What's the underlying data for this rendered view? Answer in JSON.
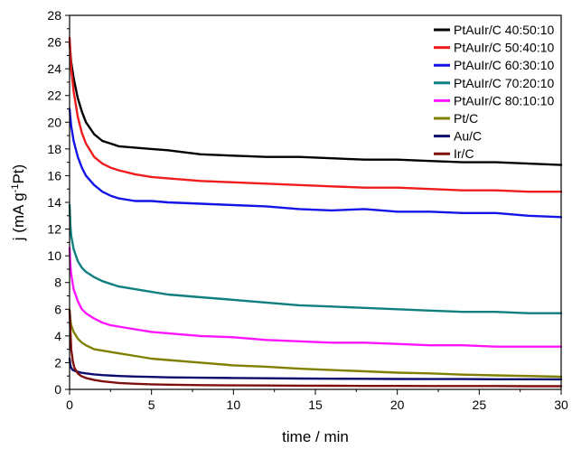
{
  "chart_data": {
    "type": "line",
    "title": "",
    "xlabel": "time / min",
    "ylabel_parts": {
      "pre": "j (mA g",
      "sup": "-1",
      "post": "Pt)"
    },
    "xlim": [
      0,
      30
    ],
    "ylim": [
      0,
      28
    ],
    "x_ticks": [
      0,
      5,
      10,
      15,
      20,
      25,
      30
    ],
    "y_ticks": [
      0,
      2,
      4,
      6,
      8,
      10,
      12,
      14,
      16,
      18,
      20,
      22,
      24,
      26,
      28
    ],
    "grid": false,
    "legend_position": "top-right",
    "series": [
      {
        "name": "PtAuIr/C 40:50:10",
        "color": "#000000",
        "x": [
          0,
          0.1,
          0.25,
          0.5,
          0.75,
          1,
          1.5,
          2,
          2.5,
          3,
          4,
          5,
          6,
          8,
          10,
          12,
          14,
          16,
          18,
          20,
          22,
          24,
          26,
          28,
          30
        ],
        "y": [
          26.0,
          24.5,
          23.3,
          21.8,
          20.8,
          20.0,
          19.1,
          18.6,
          18.4,
          18.2,
          18.1,
          18.0,
          17.9,
          17.6,
          17.5,
          17.4,
          17.4,
          17.3,
          17.2,
          17.2,
          17.1,
          17.0,
          17.0,
          16.9,
          16.8
        ]
      },
      {
        "name": "PtAuIr/C 50:40:10",
        "color": "#ee1c1c",
        "x": [
          0,
          0.1,
          0.25,
          0.5,
          0.75,
          1,
          1.5,
          2,
          2.5,
          3,
          4,
          5,
          6,
          8,
          10,
          12,
          14,
          16,
          18,
          20,
          22,
          24,
          26,
          28,
          30
        ],
        "y": [
          26.3,
          24.0,
          22.3,
          20.4,
          19.2,
          18.4,
          17.4,
          16.9,
          16.6,
          16.4,
          16.1,
          15.9,
          15.8,
          15.6,
          15.5,
          15.4,
          15.3,
          15.2,
          15.1,
          15.1,
          15.0,
          14.9,
          14.9,
          14.8,
          14.8
        ]
      },
      {
        "name": "PtAuIr/C 60:30:10",
        "color": "#1414e6",
        "x": [
          0,
          0.1,
          0.25,
          0.5,
          0.75,
          1,
          1.5,
          2,
          2.5,
          3,
          4,
          5,
          6,
          8,
          10,
          12,
          14,
          16,
          18,
          20,
          22,
          24,
          26,
          28,
          30
        ],
        "y": [
          21.0,
          19.7,
          18.6,
          17.4,
          16.6,
          16.0,
          15.3,
          14.8,
          14.5,
          14.3,
          14.1,
          14.1,
          14.0,
          13.9,
          13.8,
          13.7,
          13.5,
          13.4,
          13.5,
          13.3,
          13.3,
          13.2,
          13.2,
          13.0,
          12.9
        ]
      },
      {
        "name": "PtAuIr/C 70:20:10",
        "color": "#0f7f7f",
        "x": [
          0,
          0.05,
          0.1,
          0.25,
          0.5,
          0.75,
          1,
          1.5,
          2,
          2.5,
          3,
          4,
          5,
          6,
          8,
          10,
          12,
          14,
          16,
          18,
          20,
          22,
          24,
          26,
          28,
          30
        ],
        "y": [
          13.8,
          12.3,
          11.5,
          10.5,
          9.6,
          9.1,
          8.8,
          8.4,
          8.1,
          7.9,
          7.7,
          7.5,
          7.3,
          7.1,
          6.9,
          6.7,
          6.5,
          6.3,
          6.2,
          6.1,
          6.0,
          5.9,
          5.8,
          5.8,
          5.7,
          5.7
        ]
      },
      {
        "name": "PtAuIr/C 80:10:10",
        "color": "#ff14ff",
        "x": [
          0,
          0.05,
          0.1,
          0.25,
          0.5,
          0.75,
          1,
          1.5,
          2,
          2.5,
          3,
          4,
          5,
          6,
          8,
          10,
          12,
          14,
          16,
          18,
          20,
          22,
          24,
          26,
          28,
          30
        ],
        "y": [
          10.6,
          9.3,
          8.6,
          7.5,
          6.6,
          6.0,
          5.7,
          5.3,
          5.0,
          4.8,
          4.7,
          4.5,
          4.3,
          4.2,
          4.0,
          3.9,
          3.7,
          3.6,
          3.5,
          3.5,
          3.4,
          3.3,
          3.3,
          3.2,
          3.2,
          3.2
        ]
      },
      {
        "name": "Pt/C",
        "color": "#808000",
        "x": [
          0,
          0.05,
          0.1,
          0.25,
          0.5,
          0.75,
          1,
          1.5,
          2,
          2.5,
          3,
          4,
          5,
          6,
          8,
          10,
          12,
          14,
          16,
          18,
          20,
          22,
          24,
          26,
          28,
          30
        ],
        "y": [
          6.0,
          5.2,
          4.8,
          4.3,
          3.8,
          3.5,
          3.3,
          3.0,
          2.9,
          2.8,
          2.7,
          2.5,
          2.3,
          2.2,
          2.0,
          1.8,
          1.7,
          1.55,
          1.45,
          1.35,
          1.25,
          1.2,
          1.1,
          1.05,
          1.0,
          0.95
        ]
      },
      {
        "name": "Au/C",
        "color": "#0b0b6f",
        "x": [
          0,
          0.05,
          0.1,
          0.2,
          0.4,
          0.7,
          1,
          1.5,
          2,
          3,
          4,
          5,
          6,
          8,
          10,
          12,
          14,
          16,
          18,
          20,
          22,
          24,
          26,
          28,
          30
        ],
        "y": [
          2.3,
          1.8,
          1.6,
          1.45,
          1.35,
          1.25,
          1.2,
          1.12,
          1.07,
          1.0,
          0.96,
          0.93,
          0.9,
          0.87,
          0.85,
          0.83,
          0.81,
          0.8,
          0.79,
          0.78,
          0.77,
          0.77,
          0.76,
          0.76,
          0.75
        ]
      },
      {
        "name": "Ir/C",
        "color": "#7f0f0f",
        "x": [
          0,
          0.1,
          0.2,
          0.3,
          0.5,
          0.7,
          1,
          1.5,
          2,
          3,
          4,
          5,
          6,
          8,
          10,
          12,
          14,
          16,
          18,
          20,
          22,
          24,
          26,
          28,
          30
        ],
        "y": [
          5.9,
          3.0,
          2.1,
          1.6,
          1.2,
          1.0,
          0.85,
          0.7,
          0.6,
          0.48,
          0.42,
          0.38,
          0.35,
          0.32,
          0.3,
          0.29,
          0.28,
          0.27,
          0.26,
          0.26,
          0.25,
          0.25,
          0.25,
          0.24,
          0.24
        ]
      }
    ]
  }
}
